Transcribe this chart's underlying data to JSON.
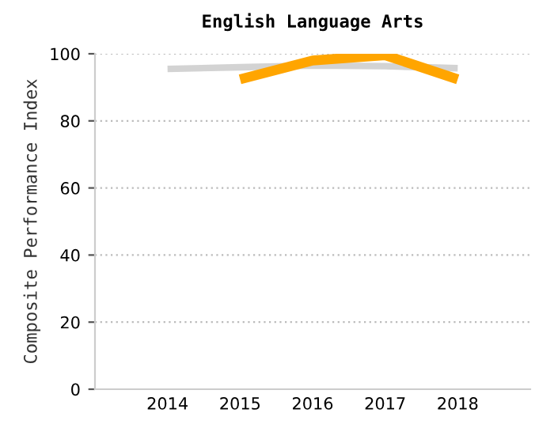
{
  "chart_data": {
    "type": "line",
    "title": "English Language Arts",
    "ylabel": "Composite Performance Index",
    "categories": [
      "2014",
      "2015",
      "2016",
      "2017",
      "2018"
    ],
    "series": [
      {
        "color": "#d3d3d3",
        "values": [
          95.5,
          96,
          96.5,
          96.3,
          95.7
        ]
      },
      {
        "color": "#ffa500",
        "values": [
          null,
          92.4,
          98,
          99.6,
          92.4
        ]
      }
    ],
    "ylim": [
      0,
      100
    ],
    "yticks": [
      0,
      20,
      40,
      60,
      80,
      100
    ],
    "grid": "y",
    "legend": false,
    "marker": "none",
    "line_style": "solid"
  }
}
